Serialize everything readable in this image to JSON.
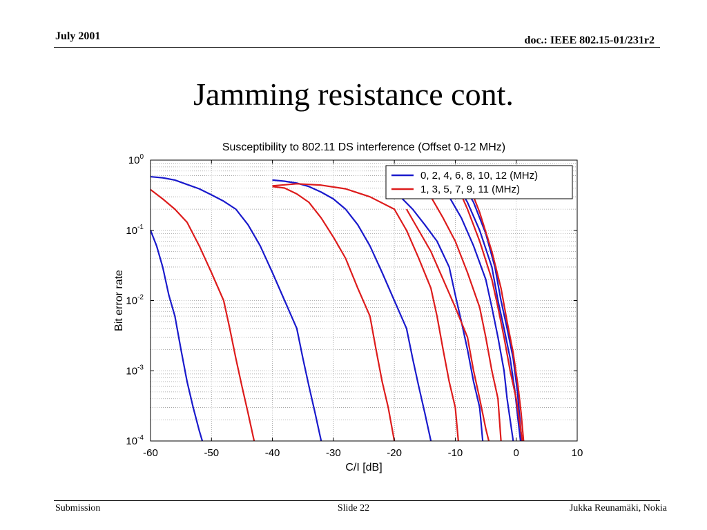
{
  "header": {
    "date": "July 2001",
    "doc": "doc.: IEEE 802.15-01/231r2"
  },
  "slide": {
    "title": "Jamming resistance cont."
  },
  "footer": {
    "left": "Submission",
    "center": "Slide 22",
    "right": "Jukka Reunamäki, Nokia"
  },
  "chart_data": {
    "type": "line",
    "title": "Susceptibility to 802.11 DS interference (Offset 0-12 MHz)",
    "xlabel": "C/I [dB]",
    "ylabel": "Bit error rate",
    "xlim": [
      -60,
      10
    ],
    "ylim": [
      0.0001,
      1
    ],
    "yscale": "log",
    "grid": true,
    "legend_position": "top-right",
    "x_ticks": [
      -60,
      -50,
      -40,
      -30,
      -20,
      -10,
      0,
      10
    ],
    "y_ticks": [
      {
        "value": 1,
        "base": "10",
        "exp": "0"
      },
      {
        "value": 0.1,
        "base": "10",
        "exp": "-1"
      },
      {
        "value": 0.01,
        "base": "10",
        "exp": "-2"
      },
      {
        "value": 0.001,
        "base": "10",
        "exp": "-3"
      },
      {
        "value": 0.0001,
        "base": "10",
        "exp": "-4"
      }
    ],
    "legend": [
      {
        "label": "0, 2, 4, 6, 8, 10, 12 (MHz)",
        "color": "#1a1acc"
      },
      {
        "label": "1, 3, 5, 7, 9, 11 (MHz)",
        "color": "#dd1c1c"
      }
    ],
    "series": [
      {
        "group": 0,
        "color": "#1a1acc",
        "points": [
          [
            -60,
            0.1
          ],
          [
            -59,
            0.06
          ],
          [
            -58,
            0.03
          ],
          [
            -57,
            0.012
          ],
          [
            -56,
            0.006
          ],
          [
            -55,
            0.002
          ],
          [
            -54,
            0.0007
          ],
          [
            -53,
            0.0003
          ],
          [
            -52,
            0.00014
          ],
          [
            -51.5,
            0.0001
          ]
        ]
      },
      {
        "group": 0,
        "color": "#1a1acc",
        "points": [
          [
            -60,
            0.58
          ],
          [
            -58,
            0.56
          ],
          [
            -56,
            0.52
          ],
          [
            -54,
            0.45
          ],
          [
            -52,
            0.39
          ],
          [
            -50,
            0.32
          ],
          [
            -48,
            0.26
          ],
          [
            -46,
            0.2
          ],
          [
            -44,
            0.12
          ],
          [
            -42,
            0.06
          ],
          [
            -40,
            0.025
          ],
          [
            -38,
            0.01
          ],
          [
            -36,
            0.004
          ],
          [
            -35,
            0.0015
          ],
          [
            -34,
            0.0006
          ],
          [
            -33,
            0.00025
          ],
          [
            -32,
            0.0001
          ]
        ]
      },
      {
        "group": 0,
        "color": "#1a1acc",
        "points": [
          [
            -40,
            0.52
          ],
          [
            -38,
            0.5
          ],
          [
            -36,
            0.47
          ],
          [
            -34,
            0.42
          ],
          [
            -32,
            0.35
          ],
          [
            -30,
            0.28
          ],
          [
            -28,
            0.2
          ],
          [
            -26,
            0.12
          ],
          [
            -24,
            0.06
          ],
          [
            -22,
            0.025
          ],
          [
            -20,
            0.01
          ],
          [
            -18,
            0.004
          ],
          [
            -17,
            0.0015
          ],
          [
            -16,
            0.0006
          ],
          [
            -15,
            0.00025
          ],
          [
            -14,
            0.0001
          ]
        ]
      },
      {
        "group": 0,
        "color": "#1a1acc",
        "points": [
          [
            -19,
            0.3
          ],
          [
            -17,
            0.2
          ],
          [
            -15,
            0.12
          ],
          [
            -13,
            0.07
          ],
          [
            -11,
            0.03
          ],
          [
            -10,
            0.012
          ],
          [
            -9,
            0.005
          ],
          [
            -8,
            0.002
          ],
          [
            -7,
            0.0007
          ],
          [
            -6,
            0.0003
          ],
          [
            -5.5,
            0.0001
          ]
        ]
      },
      {
        "group": 0,
        "color": "#1a1acc",
        "points": [
          [
            -13,
            0.5
          ],
          [
            -11,
            0.3
          ],
          [
            -9,
            0.15
          ],
          [
            -7,
            0.06
          ],
          [
            -5,
            0.02
          ],
          [
            -4,
            0.008
          ],
          [
            -3,
            0.003
          ],
          [
            -2,
            0.001
          ],
          [
            -1.5,
            0.0004
          ],
          [
            -1,
            0.0002
          ],
          [
            -0.5,
            0.0001
          ]
        ]
      },
      {
        "group": 0,
        "color": "#1a1acc",
        "points": [
          [
            -10,
            0.5
          ],
          [
            -8,
            0.25
          ],
          [
            -6,
            0.1
          ],
          [
            -4,
            0.03
          ],
          [
            -3,
            0.01
          ],
          [
            -2,
            0.004
          ],
          [
            -1,
            0.0015
          ],
          [
            -0.2,
            0.0005
          ],
          [
            0.3,
            0.0002
          ],
          [
            0.7,
            0.0001
          ]
        ]
      },
      {
        "group": 0,
        "color": "#1a1acc",
        "points": [
          [
            -9,
            0.5
          ],
          [
            -7,
            0.25
          ],
          [
            -5,
            0.09
          ],
          [
            -3.5,
            0.03
          ],
          [
            -2.5,
            0.01
          ],
          [
            -1.5,
            0.004
          ],
          [
            -0.5,
            0.0015
          ],
          [
            0.2,
            0.0005
          ],
          [
            0.6,
            0.0002
          ],
          [
            0.9,
            0.0001
          ]
        ]
      },
      {
        "group": 1,
        "color": "#dd1c1c",
        "points": [
          [
            -60,
            0.38
          ],
          [
            -58,
            0.28
          ],
          [
            -56,
            0.2
          ],
          [
            -54,
            0.13
          ],
          [
            -52,
            0.06
          ],
          [
            -50,
            0.025
          ],
          [
            -48,
            0.01
          ],
          [
            -47,
            0.004
          ],
          [
            -46,
            0.0015
          ],
          [
            -45,
            0.0006
          ],
          [
            -44,
            0.00025
          ],
          [
            -43,
            0.0001
          ]
        ]
      },
      {
        "group": 1,
        "color": "#dd1c1c",
        "points": [
          [
            -40,
            0.42
          ],
          [
            -38,
            0.4
          ],
          [
            -36,
            0.33
          ],
          [
            -34,
            0.25
          ],
          [
            -32,
            0.15
          ],
          [
            -30,
            0.08
          ],
          [
            -28,
            0.04
          ],
          [
            -26,
            0.015
          ],
          [
            -24,
            0.006
          ],
          [
            -23,
            0.002
          ],
          [
            -22,
            0.0007
          ],
          [
            -21,
            0.0003
          ],
          [
            -20,
            0.0001
          ]
        ]
      },
      {
        "group": 1,
        "color": "#dd1c1c",
        "points": [
          [
            -40,
            0.43
          ],
          [
            -36,
            0.46
          ],
          [
            -32,
            0.44
          ],
          [
            -28,
            0.39
          ],
          [
            -24,
            0.3
          ],
          [
            -20,
            0.2
          ],
          [
            -18,
            0.1
          ],
          [
            -16,
            0.04
          ],
          [
            -14,
            0.015
          ],
          [
            -13,
            0.006
          ],
          [
            -12,
            0.002
          ],
          [
            -11,
            0.0007
          ],
          [
            -10,
            0.0003
          ],
          [
            -9.5,
            0.0001
          ]
        ]
      },
      {
        "group": 1,
        "color": "#dd1c1c",
        "points": [
          [
            -18,
            0.2
          ],
          [
            -16,
            0.1
          ],
          [
            -14,
            0.05
          ],
          [
            -12,
            0.02
          ],
          [
            -10,
            0.008
          ],
          [
            -8,
            0.003
          ],
          [
            -7,
            0.001
          ],
          [
            -6,
            0.0004
          ],
          [
            -5,
            0.00015
          ],
          [
            -4.5,
            0.0001
          ]
        ]
      },
      {
        "group": 1,
        "color": "#dd1c1c",
        "points": [
          [
            -16,
            0.5
          ],
          [
            -14,
            0.3
          ],
          [
            -12,
            0.15
          ],
          [
            -10,
            0.07
          ],
          [
            -8,
            0.025
          ],
          [
            -6,
            0.008
          ],
          [
            -5,
            0.003
          ],
          [
            -4,
            0.001
          ],
          [
            -3,
            0.0004
          ],
          [
            -2.5,
            0.0001
          ]
        ]
      },
      {
        "group": 1,
        "color": "#dd1c1c",
        "points": [
          [
            -10,
            0.5
          ],
          [
            -8,
            0.2
          ],
          [
            -6,
            0.07
          ],
          [
            -4,
            0.02
          ],
          [
            -3,
            0.008
          ],
          [
            -2,
            0.003
          ],
          [
            -1,
            0.001
          ],
          [
            0,
            0.0004
          ],
          [
            0.5,
            0.0002
          ],
          [
            1,
            0.0001
          ]
        ]
      },
      {
        "group": 1,
        "color": "#dd1c1c",
        "points": [
          [
            -8,
            0.5
          ],
          [
            -6,
            0.18
          ],
          [
            -4,
            0.05
          ],
          [
            -2.5,
            0.015
          ],
          [
            -1.5,
            0.005
          ],
          [
            -0.5,
            0.0018
          ],
          [
            0.3,
            0.0006
          ],
          [
            0.8,
            0.00025
          ],
          [
            1.2,
            0.0001
          ]
        ]
      }
    ]
  }
}
